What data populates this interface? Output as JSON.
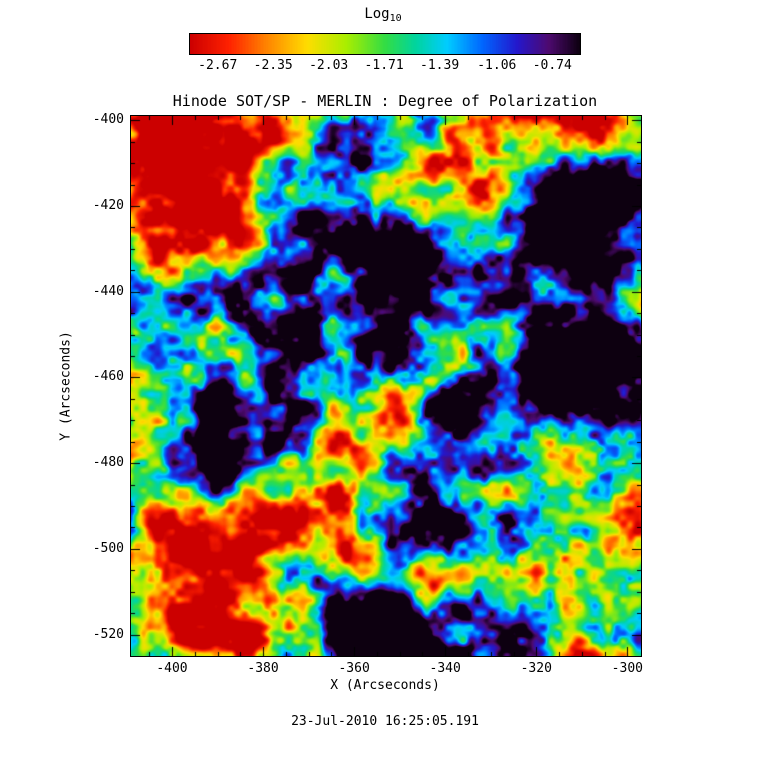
{
  "colorbar": {
    "label": "Log",
    "label_sub": "10"
  },
  "footer": {
    "timestamp": "23-Jul-2010 16:25:05.191"
  },
  "chart_data": {
    "type": "heatmap",
    "title": "Hinode SOT/SP - MERLIN : Degree of Polarization",
    "xlabel": "X (Arcseconds)",
    "ylabel": "Y (Arcseconds)",
    "x_range": [
      -409,
      -297
    ],
    "y_range": [
      -525,
      -399
    ],
    "x_ticks": [
      -400,
      -380,
      -360,
      -340,
      -320,
      -300
    ],
    "y_ticks": [
      -400,
      -420,
      -440,
      -460,
      -480,
      -500,
      -520
    ],
    "minor_tick_step": 5,
    "value_label": "Log10 Degree of Polarization",
    "value_range": [
      -2.83,
      -0.58
    ],
    "colorbar_ticks": [
      -2.67,
      -2.35,
      -2.03,
      -1.71,
      -1.39,
      -1.06,
      -0.74
    ],
    "colormap_description": "rainbow: red = low polarization, through orange/yellow/green/cyan/blue, purple-black = high polarization",
    "colormap_stops": [
      [
        0.0,
        "#cc0000"
      ],
      [
        0.1,
        "#ff2200"
      ],
      [
        0.2,
        "#ff8800"
      ],
      [
        0.3,
        "#ffdd00"
      ],
      [
        0.4,
        "#aaee00"
      ],
      [
        0.5,
        "#33dd44"
      ],
      [
        0.58,
        "#00d4a0"
      ],
      [
        0.66,
        "#00ccff"
      ],
      [
        0.75,
        "#0066ff"
      ],
      [
        0.84,
        "#2417cc"
      ],
      [
        0.92,
        "#4e0a70"
      ],
      [
        1.0,
        "#0d0010"
      ]
    ],
    "texture": {
      "description": "granular solar field, mostly low-polarization (red) with mixed green and blue plage patches",
      "octaves": [
        {
          "wavelength": 28,
          "amp": 1.0,
          "seed": 11
        },
        {
          "wavelength": 13,
          "amp": 0.65,
          "seed": 23
        },
        {
          "wavelength": 6.5,
          "amp": 0.5,
          "seed": 37
        },
        {
          "wavelength": 3.2,
          "amp": 0.35,
          "seed": 51
        },
        {
          "wavelength": 1.6,
          "amp": 0.22,
          "seed": 67
        }
      ],
      "center": 0.505,
      "contrast": 3.2,
      "gamma": 1.12
    },
    "features": [
      {
        "name": "sunspot-core-1",
        "x": -313.5,
        "y": -459,
        "sigma": 5.5,
        "amp": 1.2
      },
      {
        "name": "sunspot-halo-1",
        "x": -313.5,
        "y": -459,
        "sigma": 11,
        "amp": 0.55
      },
      {
        "name": "sunspot-core-2",
        "x": -359,
        "y": -518,
        "sigma": 6,
        "amp": 1.2
      },
      {
        "name": "sunspot-halo-2",
        "x": -359,
        "y": -517,
        "sigma": 12,
        "amp": 0.55
      },
      {
        "name": "plage-blue-1",
        "x": -314.5,
        "y": -422.5,
        "sigma": 8,
        "amp": 0.3
      },
      {
        "name": "plage-blue-2",
        "x": -323,
        "y": -414,
        "sigma": 6,
        "amp": 0.22
      },
      {
        "name": "plage-blue-3",
        "x": -343,
        "y": -433,
        "sigma": 6,
        "amp": 0.22
      },
      {
        "name": "plage-blue-4",
        "x": -334,
        "y": -472,
        "sigma": 9,
        "amp": 0.3
      },
      {
        "name": "plage-blue-5",
        "x": -372,
        "y": -476,
        "sigma": 7,
        "amp": 0.25
      },
      {
        "name": "plage-blue-6",
        "x": -391,
        "y": -482,
        "sigma": 6,
        "amp": 0.22
      },
      {
        "name": "plage-blue-7",
        "x": -350,
        "y": -498,
        "sigma": 8,
        "amp": 0.28
      },
      {
        "name": "plage-blue-8",
        "x": -371.5,
        "y": -503,
        "sigma": 7,
        "amp": 0.25
      },
      {
        "name": "plage-blue-9",
        "x": -350,
        "y": -426,
        "sigma": 6,
        "amp": 0.22
      },
      {
        "name": "plage-blue-10",
        "x": -404.5,
        "y": -430,
        "sigma": 6,
        "amp": 0.2
      },
      {
        "name": "quiet-red-1",
        "x": -394,
        "y": -409,
        "sigma": 10,
        "amp": -0.18
      },
      {
        "name": "quiet-red-2",
        "x": -306,
        "y": -512,
        "sigma": 9,
        "amp": -0.18
      },
      {
        "name": "quiet-red-3",
        "x": -400,
        "y": -461,
        "sigma": 8,
        "amp": -0.15
      }
    ]
  }
}
